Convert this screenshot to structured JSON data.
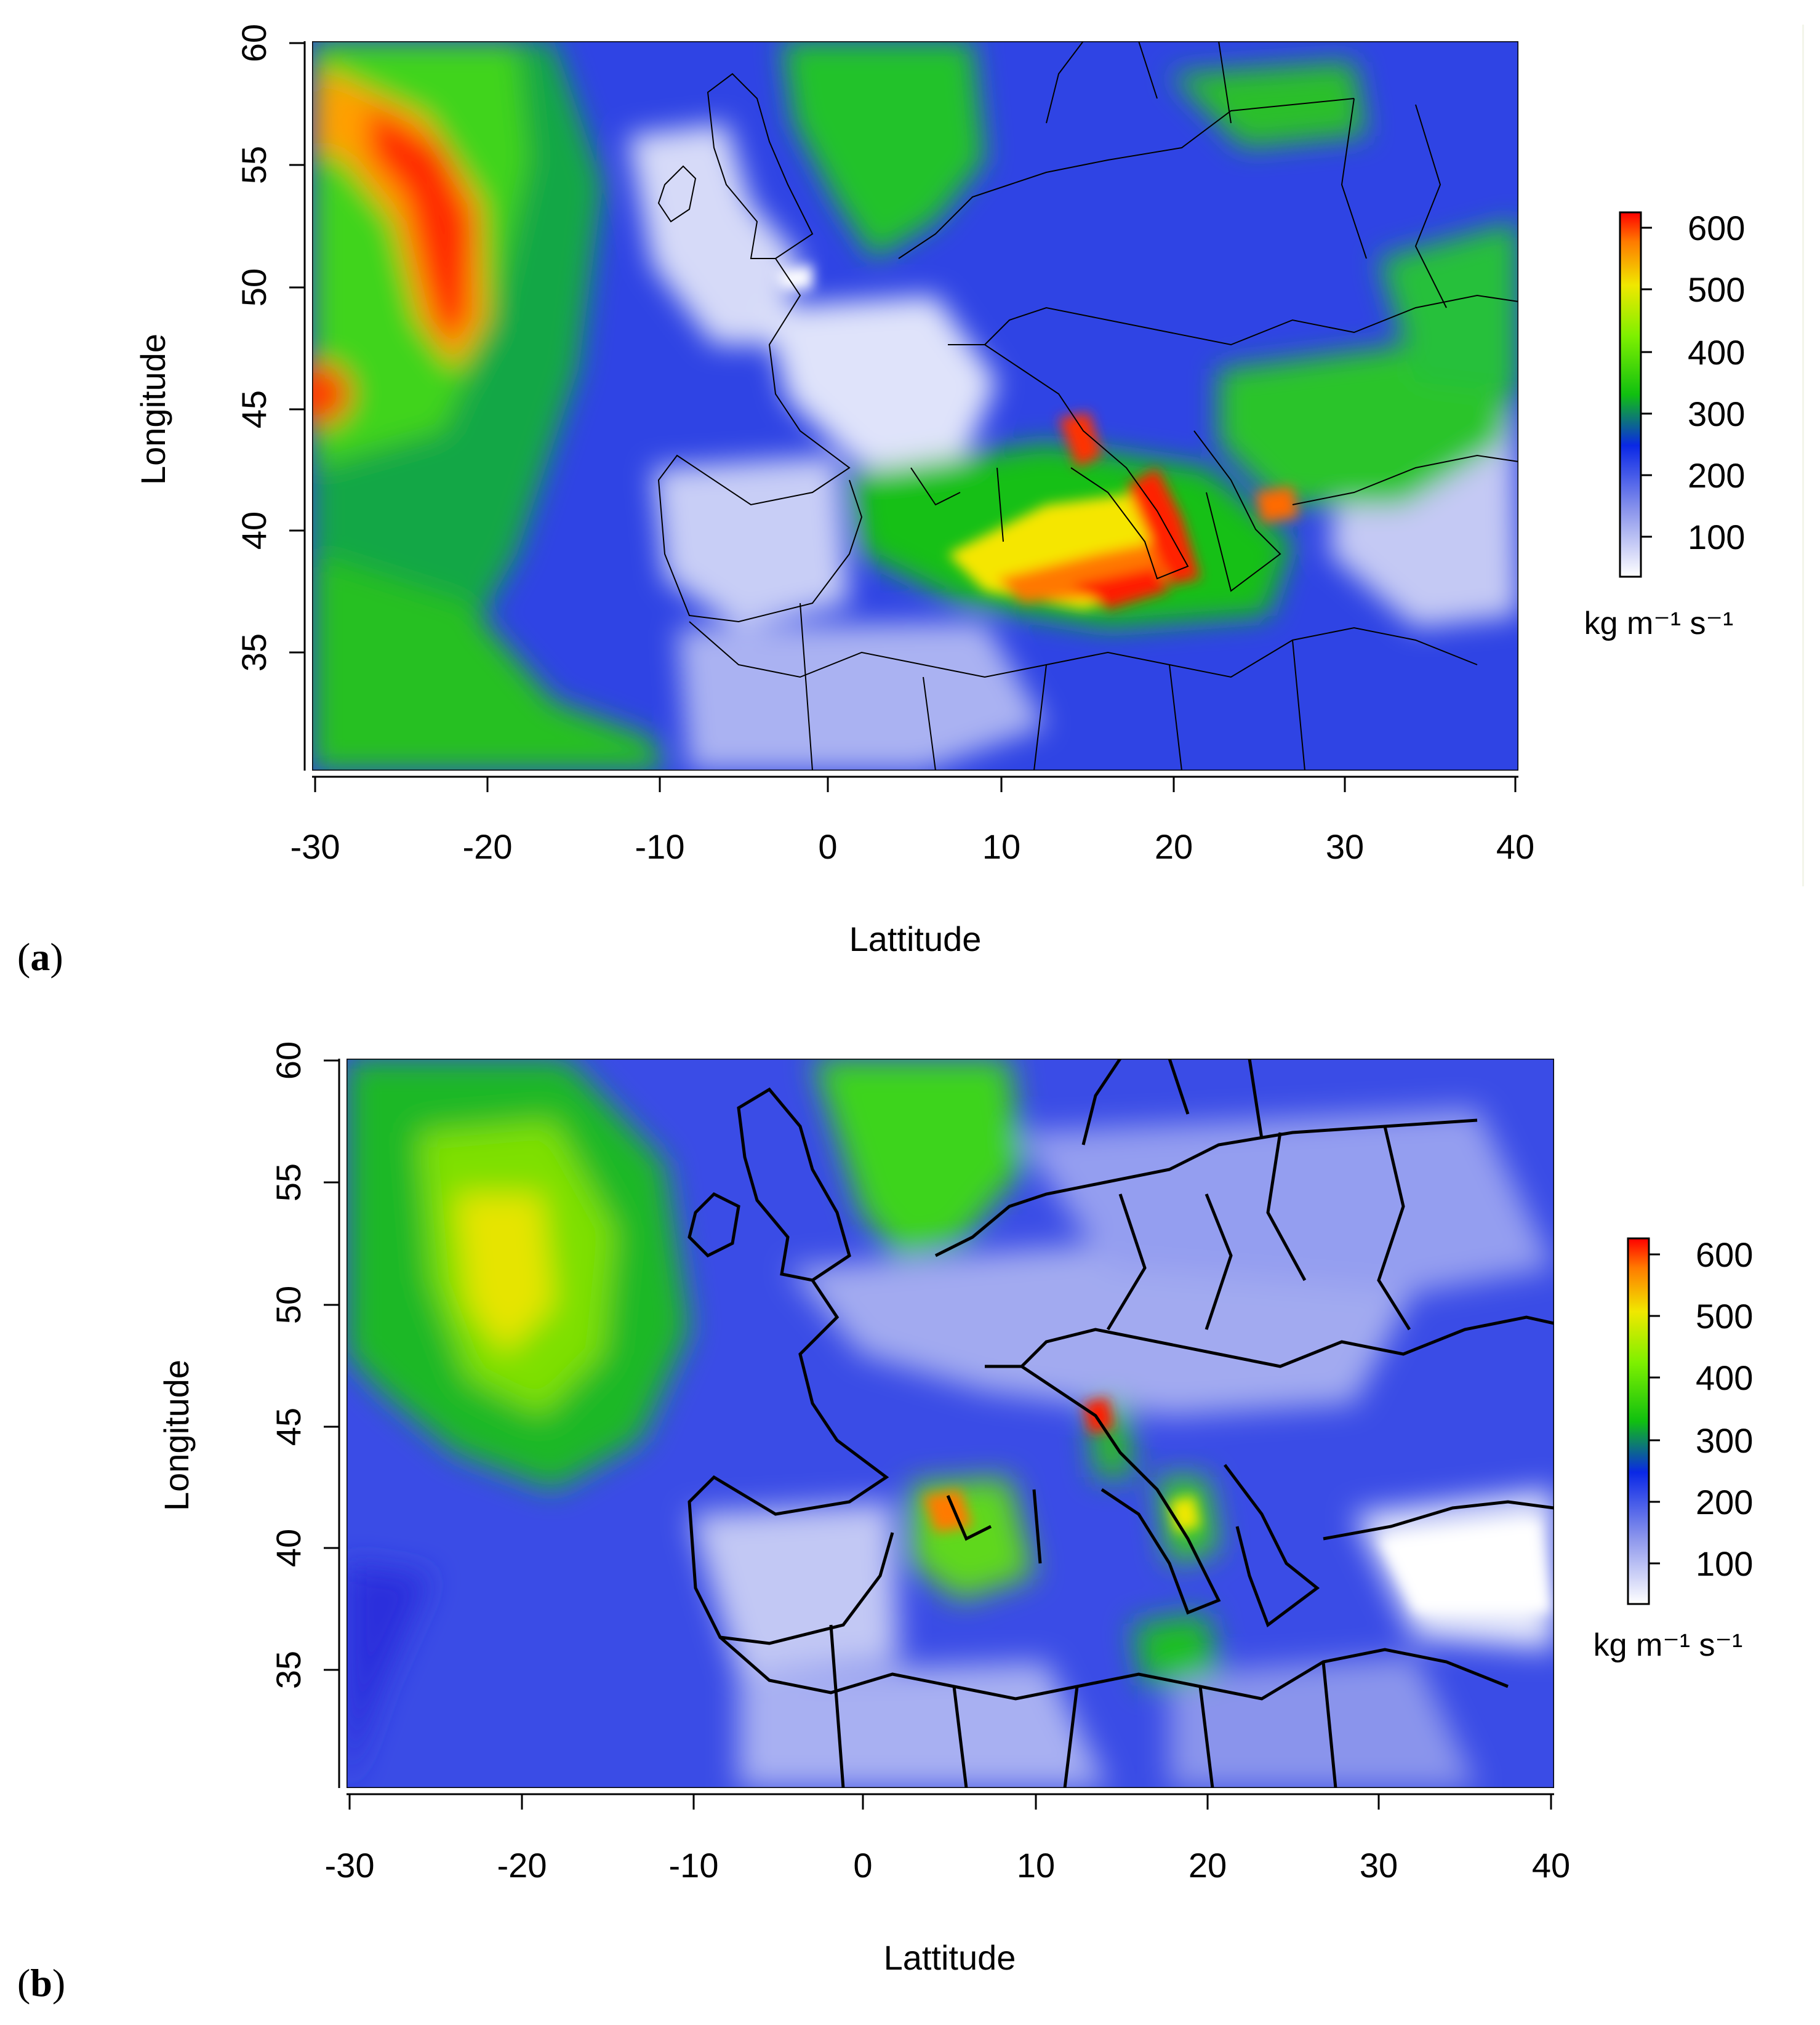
{
  "panels": [
    {
      "tag_letter": "a",
      "xlabel": "Lattitude",
      "ylabel": "Longitude",
      "x_ticks": [
        "-30",
        "-20",
        "-10",
        "0",
        "10",
        "20",
        "30",
        "40"
      ],
      "y_ticks": [
        "35",
        "40",
        "45",
        "50",
        "55",
        "60"
      ],
      "colorbar": {
        "ticks": [
          "100",
          "200",
          "300",
          "400",
          "500",
          "600"
        ],
        "unit": "kg m⁻¹ s⁻¹"
      }
    },
    {
      "tag_letter": "b",
      "xlabel": "Lattitude",
      "ylabel": "Longitude",
      "x_ticks": [
        "-30",
        "-20",
        "-10",
        "0",
        "10",
        "20",
        "30",
        "40"
      ],
      "y_ticks": [
        "35",
        "40",
        "45",
        "50",
        "55",
        "60"
      ],
      "colorbar": {
        "ticks": [
          "100",
          "200",
          "300",
          "400",
          "500",
          "600"
        ],
        "unit": "kg m⁻¹ s⁻¹"
      }
    }
  ],
  "colors": {
    "scale": [
      "#ffffff",
      "#8c96ec",
      "#0a28e6",
      "#10c010",
      "#7ef000",
      "#f0e800",
      "#ff7a00",
      "#ff0000"
    ],
    "background_field": "#4c5ae8",
    "coastline": "#000000"
  },
  "map_extent": {
    "lon_range": [
      -30,
      40
    ],
    "lat_range": [
      30,
      60
    ]
  }
}
